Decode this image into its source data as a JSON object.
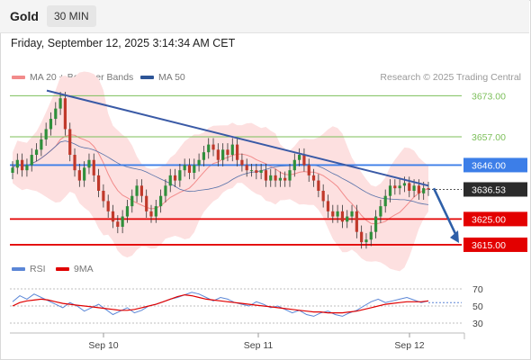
{
  "header": {
    "asset": "Gold",
    "timeframe": "30 MIN"
  },
  "datetime": "Friday, September 12, 2025 3:14:34 AM CET",
  "legend": {
    "bollinger_label": "MA 20 + Bollinger Bands",
    "bollinger_color": "#f28b8b",
    "ma50_label": "MA 50",
    "ma50_color": "#2e5597",
    "rsi_label": "RSI",
    "rsi_color": "#5b86d6",
    "rsi_ma_label": "9MA",
    "rsi_ma_color": "#e00000"
  },
  "copyright": "Research © 2025 Trading Central",
  "chart_data": {
    "type": "candlestick",
    "x_tick_labels": [
      "Sep 10",
      "Sep 11",
      "Sep 12"
    ],
    "price_levels": [
      {
        "label": "3673.00",
        "value": 3673,
        "kind": "resistance",
        "color": "#7cbf5a"
      },
      {
        "label": "3657.00",
        "value": 3657,
        "kind": "resistance",
        "color": "#7cbf5a"
      },
      {
        "label": "3646.00",
        "value": 3646,
        "kind": "pivot",
        "color": "#3c7ee8"
      },
      {
        "label": "3625.00",
        "value": 3625,
        "kind": "support",
        "color": "#e30000"
      },
      {
        "label": "3615.00",
        "value": 3615,
        "kind": "support",
        "color": "#e30000"
      }
    ],
    "last_price": {
      "label": "3636.53",
      "value": 3636.53,
      "color": "#2b2b2b"
    },
    "trendline": {
      "from_value": 3675,
      "to_value": 3638
    },
    "forecast_arrow": {
      "from_value": 3637,
      "to_value": 3615,
      "color": "#2e5fa8"
    },
    "candle_closes": [
      3645,
      3648,
      3644,
      3646,
      3650,
      3652,
      3656,
      3660,
      3664,
      3668,
      3672,
      3660,
      3650,
      3644,
      3640,
      3645,
      3648,
      3642,
      3636,
      3632,
      3628,
      3624,
      3622,
      3626,
      3630,
      3634,
      3638,
      3634,
      3628,
      3626,
      3630,
      3634,
      3638,
      3642,
      3640,
      3644,
      3646,
      3643,
      3646,
      3648,
      3651,
      3654,
      3652,
      3648,
      3652,
      3650,
      3654,
      3648,
      3646,
      3644,
      3644,
      3643,
      3644,
      3640,
      3642,
      3640,
      3641,
      3640,
      3644,
      3648,
      3650,
      3646,
      3642,
      3640,
      3636,
      3632,
      3628,
      3626,
      3628,
      3624,
      3626,
      3628,
      3620,
      3616,
      3617,
      3620,
      3626,
      3630,
      3634,
      3638,
      3637,
      3638,
      3639,
      3636,
      3638,
      3635,
      3637,
      3636.5
    ],
    "rsi": {
      "levels": [
        70,
        50,
        30
      ],
      "values": [
        55,
        62,
        58,
        64,
        60,
        56,
        52,
        48,
        54,
        50,
        44,
        48,
        52,
        46,
        40,
        44,
        48,
        42,
        45,
        50,
        52,
        55,
        58,
        60,
        63,
        66,
        64,
        60,
        56,
        60,
        58,
        54,
        52,
        50,
        55,
        52,
        48,
        50,
        46,
        42,
        45,
        40,
        38,
        42,
        44,
        40,
        38,
        42,
        45,
        50,
        55,
        58,
        54,
        56,
        58,
        60,
        57,
        54,
        56
      ],
      "ma9": [
        50,
        54,
        56,
        57,
        58,
        57,
        55,
        53,
        52,
        51,
        50,
        49,
        48,
        47,
        46,
        45,
        45,
        46,
        48,
        50,
        52,
        55,
        58,
        61,
        63,
        62,
        60,
        58,
        57,
        56,
        55,
        54,
        53,
        52,
        51,
        50,
        49,
        48,
        47,
        46,
        45,
        44,
        43,
        43,
        42,
        42,
        42,
        43,
        44,
        46,
        48,
        50,
        52,
        53,
        54,
        55,
        55,
        55,
        56
      ]
    }
  }
}
